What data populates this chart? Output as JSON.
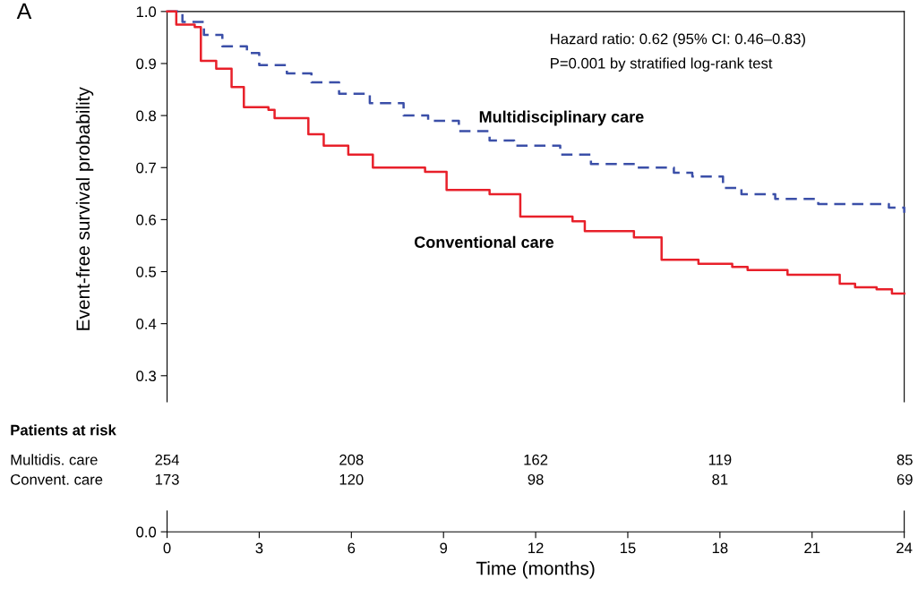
{
  "chart_data": {
    "type": "step",
    "xlabel": "Time (months)",
    "ylabel": "Event-free survival probability",
    "xlim": [
      0,
      24
    ],
    "xticks": [
      0,
      3,
      6,
      9,
      12,
      15,
      18,
      21,
      24
    ],
    "ylim": [
      0,
      1.0
    ],
    "yticks": [
      {
        "value": 0,
        "label": "0.0"
      },
      {
        "value": 0.3,
        "label": "0.3"
      },
      {
        "value": 0.4,
        "label": "0.4"
      },
      {
        "value": 0.5,
        "label": "0.5"
      },
      {
        "value": 0.6,
        "label": "0.6"
      },
      {
        "value": 0.7,
        "label": "0.7"
      },
      {
        "value": 0.8,
        "label": "0.8"
      },
      {
        "value": 0.9,
        "label": "0.9"
      },
      {
        "value": 1.0,
        "label": "1.0"
      }
    ],
    "grid": false,
    "legend": false,
    "series": [
      {
        "name": "Multidisciplinary care",
        "color": "#3b4fa8",
        "line_style": "dashed",
        "x": [
          0,
          0.5,
          1.2,
          1.8,
          2.6,
          3.0,
          3.9,
          4.7,
          5.6,
          6.6,
          7.7,
          8.5,
          9.5,
          10.5,
          11.3,
          12.8,
          13.8,
          15.3,
          16.5,
          17.1,
          18.1,
          18.7,
          19.8,
          21.2,
          23.5,
          24
        ],
        "values": [
          1.0,
          0.98,
          0.955,
          0.933,
          0.92,
          0.897,
          0.881,
          0.864,
          0.842,
          0.824,
          0.8,
          0.79,
          0.77,
          0.752,
          0.742,
          0.725,
          0.707,
          0.7,
          0.69,
          0.683,
          0.661,
          0.649,
          0.64,
          0.63,
          0.623,
          0.613
        ]
      },
      {
        "name": "Conventional care",
        "color": "#e8202a",
        "line_style": "solid",
        "x": [
          0,
          0.3,
          0.9,
          1.1,
          1.6,
          2.1,
          2.5,
          3.3,
          3.5,
          4.6,
          5.1,
          5.9,
          6.7,
          8.4,
          9.1,
          10.5,
          11.5,
          13.2,
          13.6,
          15.2,
          16.1,
          17.3,
          18.4,
          18.9,
          20.2,
          21.9,
          22.4,
          23.1,
          23.6,
          24
        ],
        "values": [
          1.0,
          0.975,
          0.97,
          0.905,
          0.89,
          0.855,
          0.816,
          0.811,
          0.795,
          0.764,
          0.742,
          0.725,
          0.7,
          0.692,
          0.657,
          0.649,
          0.606,
          0.597,
          0.578,
          0.566,
          0.523,
          0.515,
          0.509,
          0.503,
          0.494,
          0.477,
          0.47,
          0.466,
          0.458,
          0.458
        ]
      }
    ],
    "annotations": [
      "A",
      "Hazard ratio: 0.62 (95% CI: 0.46–0.83)",
      "P=0.001 by stratified log-rank test",
      "Patients at risk",
      "Multidis. care",
      "Convent. care",
      "254",
      "208",
      "162",
      "119",
      "85",
      "173",
      "120",
      "98",
      "81",
      "69"
    ]
  }
}
